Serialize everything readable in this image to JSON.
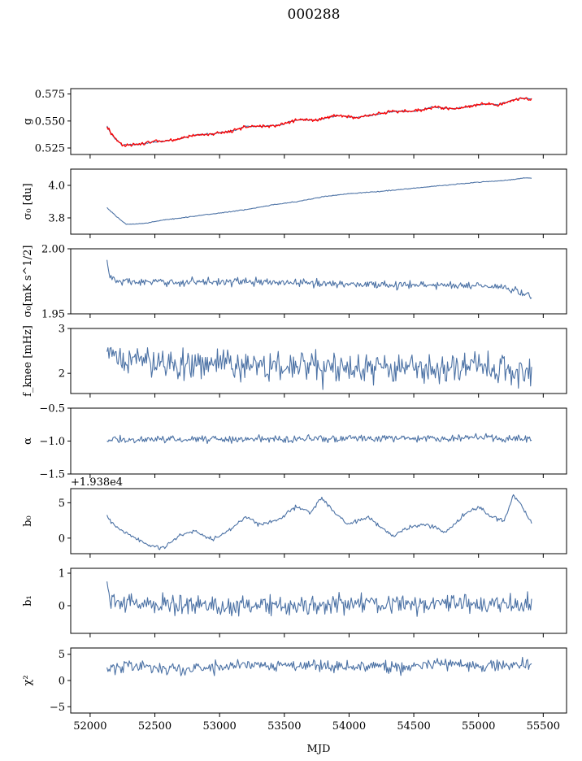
{
  "chart_data": {
    "type": "line",
    "title": "000288",
    "shared_x": {
      "label": "MJD",
      "lim": [
        51850,
        55680
      ],
      "ticks": [
        52000,
        52500,
        53000,
        53500,
        54000,
        54500,
        55000,
        55500
      ],
      "tick_labels": [
        "52000",
        "52500",
        "53000",
        "53500",
        "54000",
        "54500",
        "55000",
        "55500"
      ],
      "data_range": [
        52130,
        55410
      ]
    },
    "panels": [
      {
        "id": "g",
        "ylabel": "g",
        "ylim": [
          0.519,
          0.58
        ],
        "yticks": [
          0.525,
          0.55,
          0.575
        ],
        "ytick_labels": [
          "0.525",
          "0.550",
          "0.575"
        ],
        "series": [
          {
            "name": "g (fit)",
            "color": "#4c72a5",
            "noise": 0.0006,
            "anchors": [
              [
                52130,
                0.545
              ],
              [
                52180,
                0.535
              ],
              [
                52250,
                0.528
              ],
              [
                52350,
                0.528
              ],
              [
                52500,
                0.531
              ],
              [
                52650,
                0.532
              ],
              [
                52800,
                0.537
              ],
              [
                52950,
                0.538
              ],
              [
                53100,
                0.541
              ],
              [
                53200,
                0.545
              ],
              [
                53350,
                0.545
              ],
              [
                53450,
                0.546
              ],
              [
                53600,
                0.551
              ],
              [
                53750,
                0.551
              ],
              [
                53900,
                0.555
              ],
              [
                54050,
                0.553
              ],
              [
                54200,
                0.556
              ],
              [
                54350,
                0.559
              ],
              [
                54500,
                0.559
              ],
              [
                54650,
                0.563
              ],
              [
                54800,
                0.561
              ],
              [
                54950,
                0.564
              ],
              [
                55050,
                0.566
              ],
              [
                55150,
                0.565
              ],
              [
                55250,
                0.569
              ],
              [
                55330,
                0.571
              ],
              [
                55410,
                0.57
              ]
            ]
          },
          {
            "name": "g (measured)",
            "color": "#ff0000",
            "noise": 0.0012,
            "anchors": [
              [
                52130,
                0.545
              ],
              [
                52180,
                0.535
              ],
              [
                52250,
                0.528
              ],
              [
                52350,
                0.528
              ],
              [
                52500,
                0.531
              ],
              [
                52650,
                0.532
              ],
              [
                52800,
                0.537
              ],
              [
                52950,
                0.538
              ],
              [
                53100,
                0.541
              ],
              [
                53200,
                0.545
              ],
              [
                53350,
                0.545
              ],
              [
                53450,
                0.546
              ],
              [
                53600,
                0.551
              ],
              [
                53750,
                0.551
              ],
              [
                53900,
                0.555
              ],
              [
                54050,
                0.553
              ],
              [
                54200,
                0.556
              ],
              [
                54350,
                0.559
              ],
              [
                54500,
                0.559
              ],
              [
                54650,
                0.563
              ],
              [
                54800,
                0.561
              ],
              [
                54950,
                0.564
              ],
              [
                55050,
                0.566
              ],
              [
                55150,
                0.565
              ],
              [
                55250,
                0.569
              ],
              [
                55330,
                0.571
              ],
              [
                55410,
                0.57
              ]
            ]
          }
        ]
      },
      {
        "id": "sigma0_du",
        "ylabel": "σ₀ [du]",
        "ylim": [
          3.7,
          4.1
        ],
        "yticks": [
          3.8,
          4.0
        ],
        "ytick_labels": [
          "3.8",
          "4.0"
        ],
        "series": [
          {
            "name": "sigma0 du",
            "color": "#4c72a5",
            "noise": 0.002,
            "anchors": [
              [
                52130,
                3.862
              ],
              [
                52200,
                3.81
              ],
              [
                52280,
                3.76
              ],
              [
                52400,
                3.765
              ],
              [
                52600,
                3.79
              ],
              [
                52800,
                3.81
              ],
              [
                53000,
                3.83
              ],
              [
                53200,
                3.85
              ],
              [
                53400,
                3.88
              ],
              [
                53600,
                3.9
              ],
              [
                53800,
                3.93
              ],
              [
                54000,
                3.95
              ],
              [
                54200,
                3.96
              ],
              [
                54400,
                3.975
              ],
              [
                54600,
                3.99
              ],
              [
                54800,
                4.005
              ],
              [
                55000,
                4.02
              ],
              [
                55200,
                4.03
              ],
              [
                55350,
                4.045
              ],
              [
                55410,
                4.045
              ]
            ]
          }
        ]
      },
      {
        "id": "sigma0_mK",
        "ylabel": "σ₀[mK s^1/2]",
        "ylim": [
          1.95,
          2.0
        ],
        "yticks": [
          1.95,
          2.0
        ],
        "ytick_labels": [
          "1.95",
          "2.00"
        ],
        "series": [
          {
            "name": "sigma0 mK",
            "color": "#4c72a5",
            "noise": 0.0025,
            "anchors": [
              [
                52130,
                1.991
              ],
              [
                52150,
                1.979
              ],
              [
                52200,
                1.975
              ],
              [
                52500,
                1.974
              ],
              [
                53000,
                1.975
              ],
              [
                53500,
                1.974
              ],
              [
                54000,
                1.973
              ],
              [
                54500,
                1.972
              ],
              [
                55000,
                1.972
              ],
              [
                55200,
                1.97
              ],
              [
                55300,
                1.967
              ],
              [
                55410,
                1.963
              ]
            ]
          }
        ]
      },
      {
        "id": "fknee",
        "ylabel": "f_knee [mHz]",
        "ylim": [
          1.55,
          3.0
        ],
        "yticks": [
          2,
          3
        ],
        "ytick_labels": [
          "2",
          "3"
        ],
        "series": [
          {
            "name": "fknee",
            "color": "#4c72a5",
            "noise": 0.28,
            "anchors": [
              [
                52130,
                2.35
              ],
              [
                52500,
                2.25
              ],
              [
                53000,
                2.2
              ],
              [
                53500,
                2.15
              ],
              [
                54000,
                2.1
              ],
              [
                54500,
                2.1
              ],
              [
                55000,
                2.1
              ],
              [
                55410,
                2.05
              ]
            ]
          }
        ]
      },
      {
        "id": "alpha",
        "ylabel": "α",
        "ylim": [
          -1.5,
          -0.5
        ],
        "yticks": [
          -1.5,
          -1.0,
          -0.5
        ],
        "ytick_labels": [
          "−1.5",
          "−1.0",
          "−0.5"
        ],
        "series": [
          {
            "name": "alpha",
            "color": "#4c72a5",
            "noise": 0.045,
            "anchors": [
              [
                52130,
                -0.98
              ],
              [
                53000,
                -0.97
              ],
              [
                54000,
                -0.96
              ],
              [
                55000,
                -0.95
              ],
              [
                55410,
                -0.97
              ]
            ]
          }
        ]
      },
      {
        "id": "b0",
        "ylabel": "b₀",
        "ylim": [
          -2.2,
          7.0
        ],
        "yticks": [
          0,
          5
        ],
        "ytick_labels": [
          "0",
          "5"
        ],
        "offset_text": "+1.938e4",
        "series": [
          {
            "name": "b0",
            "color": "#4c72a5",
            "noise": 0.25,
            "anchors": [
              [
                52130,
                3.0
              ],
              [
                52200,
                1.5
              ],
              [
                52350,
                0.0
              ],
              [
                52450,
                -1.0
              ],
              [
                52560,
                -1.5
              ],
              [
                52700,
                0.5
              ],
              [
                52800,
                1.0
              ],
              [
                52950,
                -0.3
              ],
              [
                53100,
                1.5
              ],
              [
                53200,
                3.0
              ],
              [
                53300,
                2.0
              ],
              [
                53450,
                2.5
              ],
              [
                53600,
                4.5
              ],
              [
                53700,
                3.5
              ],
              [
                53780,
                5.8
              ],
              [
                53900,
                3.5
              ],
              [
                54000,
                2.0
              ],
              [
                54150,
                3.0
              ],
              [
                54280,
                1.0
              ],
              [
                54350,
                0.3
              ],
              [
                54450,
                1.5
              ],
              [
                54600,
                2.0
              ],
              [
                54750,
                0.8
              ],
              [
                54900,
                3.5
              ],
              [
                55000,
                4.5
              ],
              [
                55100,
                3.0
              ],
              [
                55200,
                2.5
              ],
              [
                55270,
                6.2
              ],
              [
                55350,
                4.0
              ],
              [
                55410,
                2.0
              ]
            ]
          }
        ]
      },
      {
        "id": "b1",
        "ylabel": "b₁",
        "ylim": [
          -0.85,
          1.15
        ],
        "yticks": [
          0,
          1
        ],
        "ytick_labels": [
          "0",
          "1"
        ],
        "series": [
          {
            "name": "b1",
            "color": "#4c72a5",
            "noise": 0.25,
            "anchors": [
              [
                52130,
                0.7
              ],
              [
                52160,
                0.1
              ],
              [
                53000,
                0.0
              ],
              [
                54000,
                0.05
              ],
              [
                55000,
                0.05
              ],
              [
                55410,
                0.0
              ]
            ]
          }
        ]
      },
      {
        "id": "chi2",
        "ylabel": "χ²",
        "ylim": [
          -6.2,
          6.2
        ],
        "yticks": [
          -5,
          0,
          5
        ],
        "ytick_labels": [
          "−5",
          "0",
          "5"
        ],
        "series": [
          {
            "name": "chi2",
            "color": "#4c72a5",
            "noise": 1.0,
            "anchors": [
              [
                52130,
                2.0
              ],
              [
                52300,
                3.0
              ],
              [
                52700,
                2.0
              ],
              [
                53200,
                3.0
              ],
              [
                53700,
                3.0
              ],
              [
                54200,
                2.5
              ],
              [
                54700,
                3.0
              ],
              [
                55200,
                3.0
              ],
              [
                55410,
                3.0
              ]
            ]
          }
        ]
      }
    ]
  }
}
